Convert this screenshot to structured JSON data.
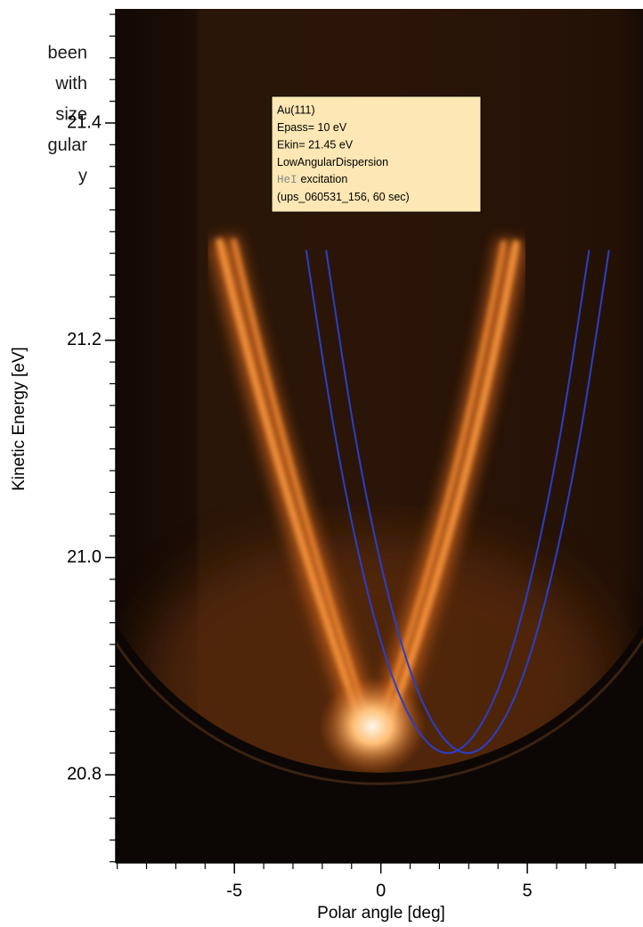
{
  "page_text": [
    "been",
    "with",
    "size",
    "gular",
    "y"
  ],
  "chart_data": {
    "type": "line",
    "xlabel": "Polar angle [deg]",
    "ylabel": "Kinetic Energy [eV]",
    "xlim": [
      -9.05,
      8.95
    ],
    "ylim": [
      20.719,
      21.505
    ],
    "xticks": [
      -5,
      0,
      5
    ],
    "yticks": [
      20.8,
      {
        "value": 21,
        "label": "21.0"
      },
      21.2,
      21.4
    ],
    "x_minor_ticks": [
      -9,
      -8,
      -7,
      -6,
      -4,
      -3,
      -2,
      -1,
      1,
      2,
      3,
      4,
      6,
      7,
      8
    ],
    "y_minor_ticks": [
      20.72,
      20.74,
      20.76,
      20.78,
      20.82,
      20.84,
      20.86,
      20.88,
      20.9,
      20.92,
      20.94,
      20.96,
      20.98,
      21.02,
      21.04,
      21.06,
      21.08,
      21.1,
      21.12,
      21.14,
      21.16,
      21.18,
      21.22,
      21.24,
      21.26,
      21.28,
      21.3,
      21.32,
      21.34,
      21.36,
      21.38,
      21.42,
      21.44,
      21.46,
      21.48,
      21.5
    ],
    "annotation": [
      "Au(111)",
      "Epass= 10 eV",
      "Ekin= 21.45 eV",
      "LowAngularDispersion",
      [
        "HeI",
        "excitation"
      ],
      "(ups_060531_156, 60 sec)"
    ],
    "series": [
      {
        "color": "#2a3fc8",
        "x": [
          -2.55,
          -1.584,
          -0.618,
          0.348,
          1.314,
          2.28,
          3.246,
          4.212,
          5.178,
          6.144,
          7.11
        ],
        "values": [
          21.283,
          21.116,
          20.987,
          20.894,
          20.839,
          20.82,
          20.839,
          20.894,
          20.987,
          21.116,
          21.283
        ]
      },
      {
        "color": "#2a3fc8",
        "x": [
          -1.87,
          -0.904,
          0.062,
          1.028,
          1.994,
          2.96,
          3.926,
          4.892,
          5.858,
          6.824,
          7.79
        ],
        "values": [
          21.283,
          21.116,
          20.987,
          20.894,
          20.839,
          20.82,
          20.839,
          20.894,
          20.987,
          21.116,
          21.283
        ]
      }
    ]
  }
}
